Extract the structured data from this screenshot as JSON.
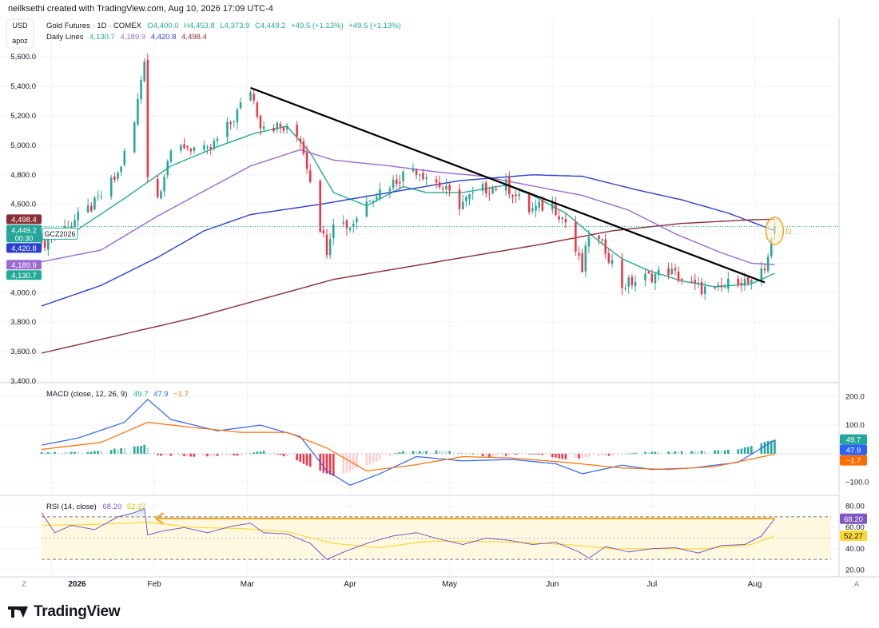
{
  "header": {
    "credit": "neilksethi created with TradingView.com, Aug 10, 2026 17:09 UTC-4"
  },
  "badges": {
    "currency": "USD",
    "scale": "apoz"
  },
  "footer": {
    "brand": "TradingView"
  },
  "colors": {
    "up": "#26a69a",
    "down": "#f23645",
    "sma20": "#22ab94",
    "sma50": "#9c6ad1",
    "sma100": "#2a3fd1",
    "sma200": "#8b2e35",
    "macd": "#2962ff",
    "signal": "#ff6d00",
    "hist_up": "#26a69a",
    "hist_up_fade": "#b2dfdb",
    "hist_down": "#f23645",
    "hist_down_fade": "#ffcdd2",
    "rsi": "#7e57c2",
    "rsi_ma": "#fdd835",
    "trend": "#000000",
    "accent": "#f7a21b"
  },
  "chart_data": [
    {
      "type": "candlestick",
      "legend": {
        "symbol": "Gold Futures · 1D · COMEX",
        "open": "O4,400.0",
        "high": "H4,453.8",
        "low": "L4,373.9",
        "close": "C4,449.2",
        "change": "+49.5 (+1.13%)",
        "change2": "+49.5 (+1.13%)",
        "lines_label": "Daily Lines",
        "lines_values": [
          "4,130.7",
          "4,189.9",
          "4,420.8",
          "4,498.4"
        ]
      },
      "ylim": [
        3400,
        5650
      ],
      "yticks": [
        3400,
        3600,
        3800,
        4000,
        4200,
        4400,
        4600,
        4800,
        5000,
        5200,
        5400,
        5600
      ],
      "ytick_labels": [
        "3,400.0",
        "3,600.0",
        "3,800.0",
        "4,000.0",
        "4,200.0",
        "4,400.0",
        "4,600.0",
        "4,800.0",
        "5,000.0",
        "5,200.0",
        "5,400.0",
        "5,600.0"
      ],
      "last_price": 4449.2,
      "price_tags": [
        {
          "value": 4498.4,
          "label": "4,498.4",
          "color": "#8b2e35"
        },
        {
          "value": 4449.2,
          "label": "4,449.2",
          "sub": "00:30",
          "color": "#26a69a",
          "symbol": "GCZ2026"
        },
        {
          "value": 4420.8,
          "label": "4,420.8",
          "color": "#2a3fd1"
        },
        {
          "value": 4189.9,
          "label": "4,189.9",
          "color": "#9c6ad1"
        },
        {
          "value": 4130.7,
          "label": "4,130.7",
          "color": "#22ab94"
        }
      ],
      "annotation_label": "D",
      "trendline": {
        "from": [
          "2026-03-02",
          5390
        ],
        "to": [
          "2026-08-04",
          4070
        ]
      },
      "moving_averages": [
        {
          "value": 4130.7,
          "color": "#22ab94",
          "points": [
            [
              "2025-12-29",
              4360
            ],
            [
              "2026-01-09",
              4430
            ],
            [
              "2026-01-23",
              4640
            ],
            [
              "2026-02-06",
              4860
            ],
            [
              "2026-02-20",
              4990
            ],
            [
              "2026-03-03",
              5080
            ],
            [
              "2026-03-13",
              5130
            ],
            [
              "2026-03-20",
              4950
            ],
            [
              "2026-03-27",
              4680
            ],
            [
              "2026-04-06",
              4590
            ],
            [
              "2026-04-17",
              4720
            ],
            [
              "2026-04-24",
              4680
            ],
            [
              "2026-05-05",
              4680
            ],
            [
              "2026-05-18",
              4730
            ],
            [
              "2026-05-26",
              4660
            ],
            [
              "2026-06-05",
              4540
            ],
            [
              "2026-06-15",
              4350
            ],
            [
              "2026-06-22",
              4230
            ],
            [
              "2026-06-30",
              4150
            ],
            [
              "2026-07-10",
              4080
            ],
            [
              "2026-07-20",
              4040
            ],
            [
              "2026-07-31",
              4060
            ],
            [
              "2026-08-07",
              4131
            ]
          ]
        },
        {
          "value": 4189.9,
          "color": "#9c6ad1",
          "points": [
            [
              "2025-12-29",
              4210
            ],
            [
              "2026-01-16",
              4290
            ],
            [
              "2026-02-02",
              4520
            ],
            [
              "2026-02-16",
              4690
            ],
            [
              "2026-03-02",
              4860
            ],
            [
              "2026-03-17",
              4970
            ],
            [
              "2026-03-27",
              4900
            ],
            [
              "2026-04-13",
              4860
            ],
            [
              "2026-04-27",
              4820
            ],
            [
              "2026-05-11",
              4790
            ],
            [
              "2026-05-27",
              4720
            ],
            [
              "2026-06-10",
              4660
            ],
            [
              "2026-06-24",
              4560
            ],
            [
              "2026-07-08",
              4400
            ],
            [
              "2026-07-22",
              4270
            ],
            [
              "2026-07-31",
              4200
            ],
            [
              "2026-08-07",
              4190
            ]
          ]
        },
        {
          "value": 4420.8,
          "color": "#2a3fd1",
          "points": [
            [
              "2025-12-29",
              3910
            ],
            [
              "2026-01-16",
              4050
            ],
            [
              "2026-02-02",
              4240
            ],
            [
              "2026-02-16",
              4420
            ],
            [
              "2026-03-02",
              4530
            ],
            [
              "2026-03-23",
              4600
            ],
            [
              "2026-04-13",
              4680
            ],
            [
              "2026-05-04",
              4760
            ],
            [
              "2026-05-26",
              4800
            ],
            [
              "2026-06-10",
              4790
            ],
            [
              "2026-06-26",
              4700
            ],
            [
              "2026-07-10",
              4630
            ],
            [
              "2026-07-24",
              4540
            ],
            [
              "2026-08-07",
              4421
            ]
          ]
        },
        {
          "value": 4498.4,
          "color": "#8b2e35",
          "points": [
            [
              "2025-12-29",
              3590
            ],
            [
              "2026-01-23",
              3720
            ],
            [
              "2026-02-13",
              3830
            ],
            [
              "2026-03-06",
              3960
            ],
            [
              "2026-03-27",
              4090
            ],
            [
              "2026-04-17",
              4170
            ],
            [
              "2026-05-08",
              4250
            ],
            [
              "2026-05-29",
              4330
            ],
            [
              "2026-06-19",
              4420
            ],
            [
              "2026-07-10",
              4470
            ],
            [
              "2026-07-31",
              4495
            ],
            [
              "2026-08-07",
              4498
            ]
          ]
        }
      ],
      "key_points": [
        [
          "2025-12-29",
          4330
        ],
        [
          "2026-01-07",
          4470
        ],
        [
          "2026-01-14",
          4600
        ],
        [
          "2026-01-21",
          4800
        ],
        [
          "2026-01-26",
          5150
        ],
        [
          "2026-01-29",
          5600
        ],
        [
          "2026-01-30",
          4800
        ],
        [
          "2026-02-02",
          4650
        ],
        [
          "2026-02-05",
          4900
        ],
        [
          "2026-02-10",
          5000
        ],
        [
          "2026-02-17",
          4950
        ],
        [
          "2026-02-24",
          5150
        ],
        [
          "2026-03-02",
          5380
        ],
        [
          "2026-03-05",
          5150
        ],
        [
          "2026-03-11",
          5120
        ],
        [
          "2026-03-17",
          5050
        ],
        [
          "2026-03-20",
          4780
        ],
        [
          "2026-03-23",
          4450
        ],
        [
          "2026-03-25",
          4300
        ],
        [
          "2026-03-27",
          4500
        ],
        [
          "2026-04-01",
          4450
        ],
        [
          "2026-04-07",
          4650
        ],
        [
          "2026-04-14",
          4750
        ],
        [
          "2026-04-20",
          4850
        ],
        [
          "2026-04-27",
          4750
        ],
        [
          "2026-05-04",
          4600
        ],
        [
          "2026-05-11",
          4700
        ],
        [
          "2026-05-18",
          4730
        ],
        [
          "2026-05-25",
          4560
        ],
        [
          "2026-06-01",
          4600
        ],
        [
          "2026-06-05",
          4480
        ],
        [
          "2026-06-10",
          4150
        ],
        [
          "2026-06-12",
          4400
        ],
        [
          "2026-06-17",
          4300
        ],
        [
          "2026-06-22",
          4050
        ],
        [
          "2026-06-29",
          4100
        ],
        [
          "2026-07-06",
          4150
        ],
        [
          "2026-07-13",
          4050
        ],
        [
          "2026-07-20",
          4000
        ],
        [
          "2026-07-27",
          4100
        ],
        [
          "2026-07-31",
          4050
        ],
        [
          "2026-08-04",
          4150
        ],
        [
          "2026-08-06",
          4380
        ],
        [
          "2026-08-07",
          4449
        ]
      ]
    },
    {
      "type": "histogram+line",
      "legend": {
        "label": "MACD (close, 12, 26, 9)",
        "values": [
          "49.7",
          "47.9",
          "−1.7"
        ]
      },
      "ylim": [
        -140,
        240
      ],
      "yticks": [
        200,
        100,
        -100
      ],
      "ytick_labels": [
        "200.0",
        "100.0",
        "−100.0"
      ],
      "tags": [
        {
          "value": 49.7,
          "label": "49.7",
          "color": "#26a69a"
        },
        {
          "value": 47.9,
          "label": "47.9",
          "color": "#2962ff"
        },
        {
          "value": -1.7,
          "label": "−1.7",
          "color": "#ff6d00"
        }
      ],
      "macd": [
        [
          "2025-12-29",
          30
        ],
        [
          "2026-01-09",
          55
        ],
        [
          "2026-01-23",
          110
        ],
        [
          "2026-01-30",
          190
        ],
        [
          "2026-02-06",
          120
        ],
        [
          "2026-02-20",
          80
        ],
        [
          "2026-03-05",
          100
        ],
        [
          "2026-03-17",
          60
        ],
        [
          "2026-03-25",
          -60
        ],
        [
          "2026-04-01",
          -110
        ],
        [
          "2026-04-10",
          -70
        ],
        [
          "2026-04-21",
          -10
        ],
        [
          "2026-05-05",
          -25
        ],
        [
          "2026-05-20",
          -20
        ],
        [
          "2026-06-02",
          -35
        ],
        [
          "2026-06-10",
          -70
        ],
        [
          "2026-06-22",
          -40
        ],
        [
          "2026-07-01",
          -55
        ],
        [
          "2026-07-13",
          -50
        ],
        [
          "2026-07-27",
          -30
        ],
        [
          "2026-08-07",
          47.9
        ]
      ],
      "signal": [
        [
          "2025-12-29",
          15
        ],
        [
          "2026-01-16",
          40
        ],
        [
          "2026-01-30",
          110
        ],
        [
          "2026-02-10",
          95
        ],
        [
          "2026-02-27",
          75
        ],
        [
          "2026-03-13",
          75
        ],
        [
          "2026-03-25",
          20
        ],
        [
          "2026-04-06",
          -60
        ],
        [
          "2026-04-20",
          -40
        ],
        [
          "2026-05-05",
          -10
        ],
        [
          "2026-05-20",
          -15
        ],
        [
          "2026-06-05",
          -30
        ],
        [
          "2026-06-22",
          -50
        ],
        [
          "2026-07-06",
          -55
        ],
        [
          "2026-07-20",
          -45
        ],
        [
          "2026-08-07",
          -1.7
        ]
      ],
      "histogram_profile": [
        [
          "2025-12-29",
          5
        ],
        [
          "2026-01-09",
          5
        ],
        [
          "2026-01-16",
          10
        ],
        [
          "2026-01-23",
          20
        ],
        [
          "2026-01-29",
          30
        ],
        [
          "2026-02-02",
          -5
        ],
        [
          "2026-02-13",
          -10
        ],
        [
          "2026-02-27",
          -5
        ],
        [
          "2026-03-06",
          10
        ],
        [
          "2026-03-13",
          -10
        ],
        [
          "2026-03-23",
          -60
        ],
        [
          "2026-03-27",
          -80
        ],
        [
          "2026-04-06",
          -40
        ],
        [
          "2026-04-17",
          10
        ],
        [
          "2026-05-01",
          10
        ],
        [
          "2026-05-12",
          -10
        ],
        [
          "2026-05-26",
          0
        ],
        [
          "2026-06-05",
          -20
        ],
        [
          "2026-06-15",
          -10
        ],
        [
          "2026-06-29",
          5
        ],
        [
          "2026-07-13",
          8
        ],
        [
          "2026-07-27",
          15
        ],
        [
          "2026-08-07",
          49.7
        ]
      ]
    },
    {
      "type": "line",
      "legend": {
        "label": "RSI (14, close)",
        "values": [
          "68.20",
          "52.27"
        ]
      },
      "ylim": [
        15,
        88
      ],
      "yticks": [
        80,
        60,
        40,
        20
      ],
      "ytick_labels": [
        "80.00",
        "60.00",
        "40.00",
        "20.00"
      ],
      "bands": [
        70,
        30
      ],
      "tags": [
        {
          "value": 68.2,
          "label": "68.20",
          "color": "#7e57c2"
        },
        {
          "value": 52.27,
          "label": "52.27",
          "color": "#fdd835"
        }
      ],
      "level_line": {
        "value": 68.5,
        "from": "2026-02-03",
        "to": "2026-08-07"
      },
      "rsi": [
        [
          "2025-12-29",
          74
        ],
        [
          "2026-01-02",
          55
        ],
        [
          "2026-01-07",
          62
        ],
        [
          "2026-01-14",
          58
        ],
        [
          "2026-01-21",
          70
        ],
        [
          "2026-01-26",
          74
        ],
        [
          "2026-01-29",
          78
        ],
        [
          "2026-01-30",
          53
        ],
        [
          "2026-02-04",
          57
        ],
        [
          "2026-02-10",
          60
        ],
        [
          "2026-02-17",
          55
        ],
        [
          "2026-02-24",
          61
        ],
        [
          "2026-03-02",
          64
        ],
        [
          "2026-03-06",
          55
        ],
        [
          "2026-03-13",
          54
        ],
        [
          "2026-03-20",
          45
        ],
        [
          "2026-03-25",
          30
        ],
        [
          "2026-03-31",
          38
        ],
        [
          "2026-04-07",
          46
        ],
        [
          "2026-04-14",
          52
        ],
        [
          "2026-04-21",
          55
        ],
        [
          "2026-04-28",
          49
        ],
        [
          "2026-05-05",
          44
        ],
        [
          "2026-05-12",
          50
        ],
        [
          "2026-05-19",
          48
        ],
        [
          "2026-05-26",
          44
        ],
        [
          "2026-06-02",
          46
        ],
        [
          "2026-06-09",
          37
        ],
        [
          "2026-06-12",
          31
        ],
        [
          "2026-06-17",
          42
        ],
        [
          "2026-06-24",
          37
        ],
        [
          "2026-07-01",
          40
        ],
        [
          "2026-07-08",
          41
        ],
        [
          "2026-07-15",
          36
        ],
        [
          "2026-07-22",
          43
        ],
        [
          "2026-07-29",
          44
        ],
        [
          "2026-08-03",
          52
        ],
        [
          "2026-08-07",
          68.2
        ]
      ],
      "rsi_ma": [
        [
          "2025-12-29",
          62
        ],
        [
          "2026-01-16",
          63
        ],
        [
          "2026-01-30",
          65
        ],
        [
          "2026-02-13",
          60
        ],
        [
          "2026-02-27",
          59
        ],
        [
          "2026-03-13",
          56
        ],
        [
          "2026-03-27",
          45
        ],
        [
          "2026-04-10",
          41
        ],
        [
          "2026-04-24",
          47
        ],
        [
          "2026-05-08",
          47
        ],
        [
          "2026-05-22",
          46
        ],
        [
          "2026-06-05",
          44
        ],
        [
          "2026-06-19",
          40
        ],
        [
          "2026-07-03",
          40
        ],
        [
          "2026-07-17",
          40
        ],
        [
          "2026-07-31",
          44
        ],
        [
          "2026-08-07",
          52.27
        ]
      ]
    }
  ],
  "x_axis": {
    "start": "2025-12-29",
    "end": "2026-08-24",
    "labels": [
      {
        "date": "2026-01-01",
        "text": "2026",
        "bold": true
      },
      {
        "date": "2026-02-01",
        "text": "Feb"
      },
      {
        "date": "2026-03-01",
        "text": "Mar"
      },
      {
        "date": "2026-04-01",
        "text": "Apr"
      },
      {
        "date": "2026-05-01",
        "text": "May"
      },
      {
        "date": "2026-06-01",
        "text": "Jun"
      },
      {
        "date": "2026-07-01",
        "text": "Jul"
      },
      {
        "date": "2026-08-01",
        "text": "Aug"
      }
    ],
    "corner_left": "Z",
    "corner_right": "A"
  }
}
